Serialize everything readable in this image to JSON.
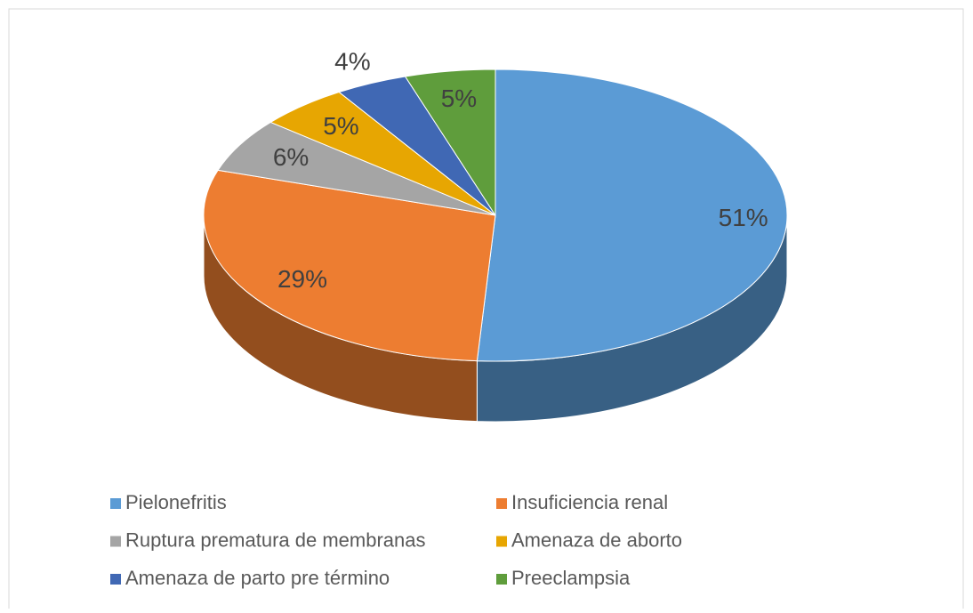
{
  "chart_data": {
    "type": "pie",
    "categories": [
      "Pielonefritis",
      "Insuficiencia renal",
      "Ruptura prematura de membranas",
      "Amenaza de aborto",
      "Amenaza de parto pre término",
      "Preeclampsia"
    ],
    "values": [
      51,
      29,
      6,
      5,
      4,
      5
    ],
    "value_labels": [
      "51%",
      "29%",
      "6%",
      "5%",
      "4%",
      "5%"
    ],
    "colors": [
      "#5b9bd5",
      "#ed7d31",
      "#a5a5a5",
      "#e7a602",
      "#4068b4",
      "#5f9d3c"
    ],
    "legend": "bottom"
  }
}
